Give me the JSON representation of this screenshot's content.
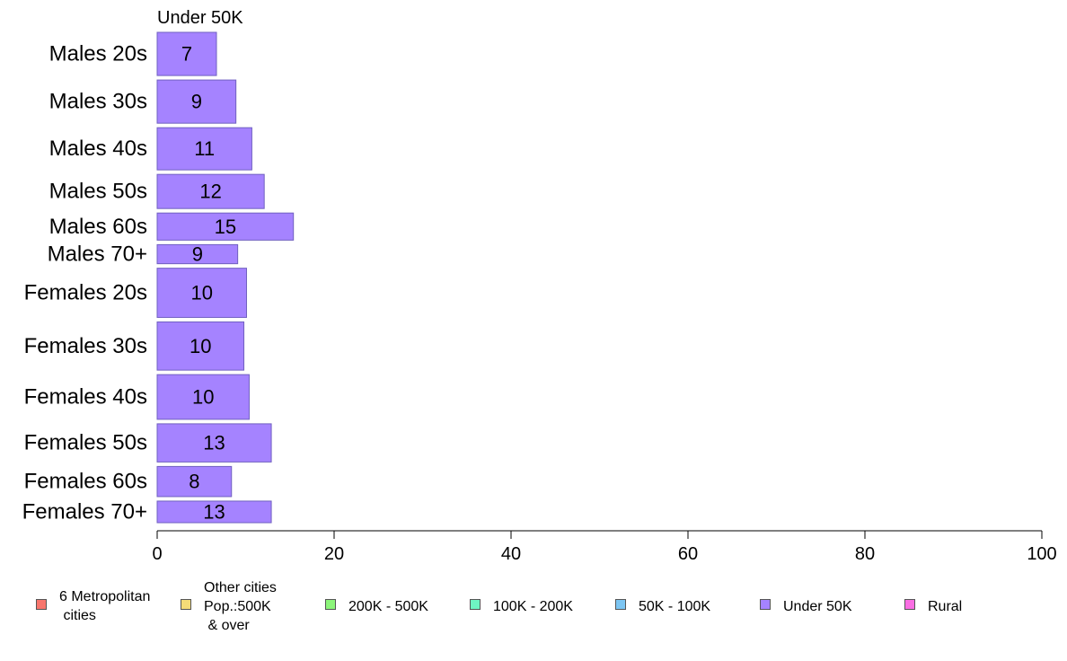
{
  "chart_data": {
    "type": "bar",
    "orientation": "horizontal",
    "title": "Under 50K",
    "categories": [
      "Males 20s",
      "Males 30s",
      "Males 40s",
      "Males 50s",
      "Males 60s",
      "Males 70+",
      "Females 20s",
      "Females 30s",
      "Females 40s",
      "Females 50s",
      "Females 60s",
      "Females 70+"
    ],
    "series": [
      {
        "name": "Under 50K",
        "values": [
          6.7,
          8.9,
          10.7,
          12.1,
          15.4,
          9.1,
          10.1,
          9.8,
          10.4,
          12.9,
          8.4,
          12.9
        ],
        "labels": [
          "7",
          "9",
          "11",
          "12",
          "15",
          "9",
          "10",
          "10",
          "10",
          "13",
          "8",
          "13"
        ]
      }
    ],
    "bar_widths": [
      0.86,
      0.86,
      0.84,
      0.68,
      0.54,
      0.38,
      0.98,
      0.96,
      0.89,
      0.76,
      0.6,
      0.43
    ],
    "xlim": [
      0,
      100
    ],
    "xticks": [
      0,
      20,
      40,
      60,
      80,
      100
    ],
    "xlabel": "",
    "ylabel": "",
    "grid": false,
    "bar_color": "#a583ff",
    "bar_edge_color": "#7060c0",
    "legend": {
      "placement": "bottom",
      "items": [
        {
          "label": "6 Metropolitan\n cities",
          "color": "#f8766d"
        },
        {
          "label": "Other cities\nPop.:500K\n & over",
          "color": "#f5dc78"
        },
        {
          "label": "200K - 500K",
          "color": "#8cf57a"
        },
        {
          "label": "100K - 200K",
          "color": "#6ef5c3"
        },
        {
          "label": "50K - 100K",
          "color": "#7cc5f2"
        },
        {
          "label": "Under 50K",
          "color": "#a583ff"
        },
        {
          "label": "Rural",
          "color": "#fa6ee3"
        }
      ]
    }
  }
}
